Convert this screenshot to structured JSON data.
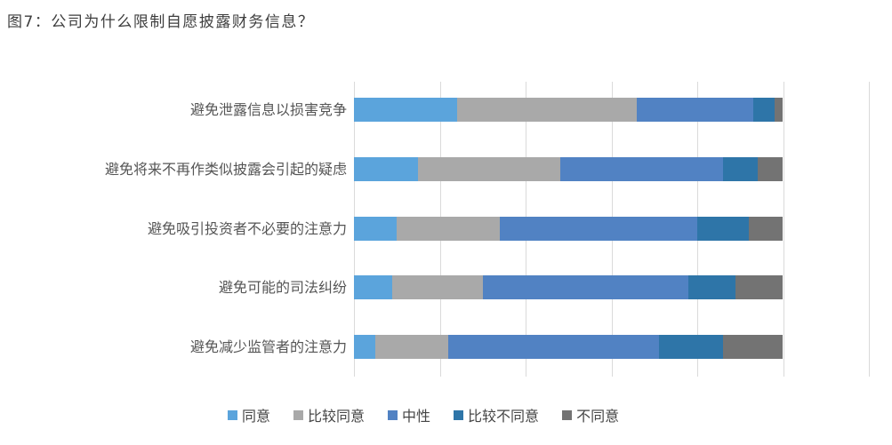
{
  "title": "图7：公司为什么限制自愿披露财务信息？",
  "chart_data": {
    "type": "bar",
    "orientation": "horizontal",
    "stacked": true,
    "units": "percent",
    "title": "图7：公司为什么限制自愿披露财务信息？",
    "categories": [
      "避免泄露信息以损害竞争",
      "避免将来不再作类似披露会引起的疑虑",
      "避免吸引投资者不必要的注意力",
      "避免可能的司法纠纷",
      "避免减少监管者的注意力"
    ],
    "series": [
      {
        "name": "同意",
        "color": "#5BA4DC",
        "values": [
          24,
          15,
          10,
          9,
          5
        ]
      },
      {
        "name": "比较同意",
        "color": "#A9A9A9",
        "values": [
          42,
          33,
          24,
          21,
          17
        ]
      },
      {
        "name": "中性",
        "color": "#5182C3",
        "values": [
          27,
          38,
          46,
          48,
          49
        ]
      },
      {
        "name": "比较不同意",
        "color": "#2E75A8",
        "values": [
          5,
          8,
          12,
          11,
          15
        ]
      },
      {
        "name": "不同意",
        "color": "#737373",
        "values": [
          2,
          6,
          8,
          11,
          14
        ]
      }
    ],
    "bar_total": 100,
    "xlim": [
      0,
      120
    ],
    "gridline_interval": 20,
    "gridline_color": "#DADADA",
    "grid": "vertical-only",
    "x_axis_labels": "none",
    "legend_position": "bottom"
  }
}
